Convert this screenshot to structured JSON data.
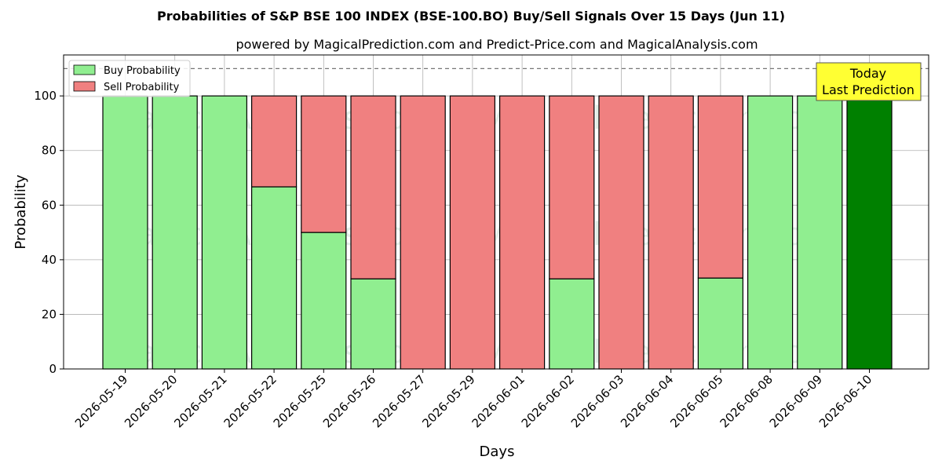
{
  "chart_data": {
    "type": "bar",
    "title": "Probabilities of S&P BSE 100 INDEX (BSE-100.BO) Buy/Sell Signals Over 15 Days (Jun 11)",
    "subtitle": "powered by MagicalPrediction.com and Predict-Price.com and MagicalAnalysis.com",
    "xlabel": "Days",
    "ylabel": "Probability",
    "ylim": [
      0,
      115
    ],
    "yticks": [
      0,
      20,
      40,
      60,
      80,
      100
    ],
    "grid": true,
    "stacked": true,
    "reference_line": 110,
    "legend_position": "top-left",
    "categories": [
      "2026-05-19",
      "2026-05-20",
      "2026-05-21",
      "2026-05-22",
      "2026-05-25",
      "2026-05-26",
      "2026-05-27",
      "2026-05-29",
      "2026-06-01",
      "2026-06-02",
      "2026-06-03",
      "2026-06-04",
      "2026-06-05",
      "2026-06-08",
      "2026-06-09",
      "2026-06-10"
    ],
    "series": [
      {
        "name": "Buy Probability",
        "color": "#90ee90",
        "values": [
          100,
          100,
          100,
          66.7,
          50,
          33,
          0,
          0,
          0,
          33,
          0,
          0,
          33.3,
          100,
          100,
          100
        ]
      },
      {
        "name": "Sell Probability",
        "color": "#f08080",
        "values": [
          0,
          0,
          0,
          33.3,
          50,
          67,
          100,
          100,
          100,
          67,
          100,
          100,
          66.7,
          0,
          0,
          0
        ]
      }
    ],
    "highlight": {
      "index": 15,
      "color": "#008000"
    },
    "annotation": {
      "line1": "Today",
      "line2": "Last Prediction",
      "color": "#ffff33"
    },
    "watermarks": [
      "MagicalAnalysis.com",
      "MagicalPrediction.com"
    ]
  }
}
